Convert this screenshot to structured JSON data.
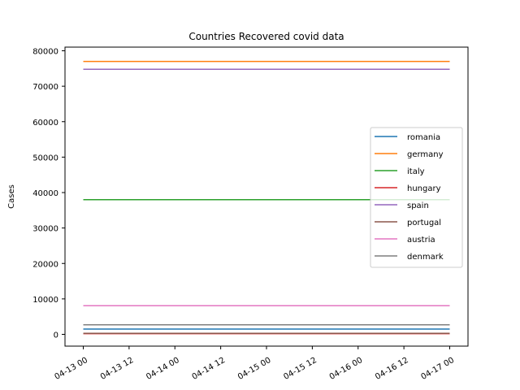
{
  "chart_data": {
    "type": "line",
    "title": "Countries Recovered covid data",
    "xlabel": "",
    "ylabel": "Cases",
    "x": [
      "04-13 00",
      "04-13 12",
      "04-14 00",
      "04-14 12",
      "04-15 00",
      "04-15 12",
      "04-16 00",
      "04-16 12",
      "04-17 00"
    ],
    "x_range": [
      "04-13 00",
      "04-17 00"
    ],
    "ylim": [
      0,
      80000
    ],
    "yticks": [
      0,
      10000,
      20000,
      30000,
      40000,
      50000,
      60000,
      70000,
      80000
    ],
    "grid": false,
    "legend_position": "center-right",
    "series": [
      {
        "name": "romania",
        "color": "#1f77b4",
        "x": [
          "04-13 00",
          "04-17 00"
        ],
        "values": [
          1500,
          1500
        ]
      },
      {
        "name": "germany",
        "color": "#ff7f0e",
        "x": [
          "04-13 00",
          "04-17 00"
        ],
        "values": [
          77000,
          77000
        ]
      },
      {
        "name": "italy",
        "color": "#2ca02c",
        "x": [
          "04-13 00",
          "04-17 00"
        ],
        "values": [
          38000,
          38000
        ]
      },
      {
        "name": "hungary",
        "color": "#d62728",
        "x": [
          "04-13 00",
          "04-17 00"
        ],
        "values": [
          200,
          200
        ]
      },
      {
        "name": "spain",
        "color": "#9467bd",
        "x": [
          "04-13 00",
          "04-17 00"
        ],
        "values": [
          74800,
          74800
        ]
      },
      {
        "name": "portugal",
        "color": "#8c564b",
        "x": [
          "04-13 00",
          "04-17 00"
        ],
        "values": [
          300,
          300
        ]
      },
      {
        "name": "austria",
        "color": "#e377c2",
        "x": [
          "04-13 00",
          "04-17 00"
        ],
        "values": [
          8100,
          8100
        ]
      },
      {
        "name": "denmark",
        "color": "#7f7f7f",
        "x": [
          "04-13 00",
          "04-17 00"
        ],
        "values": [
          2700,
          2700
        ]
      }
    ]
  }
}
